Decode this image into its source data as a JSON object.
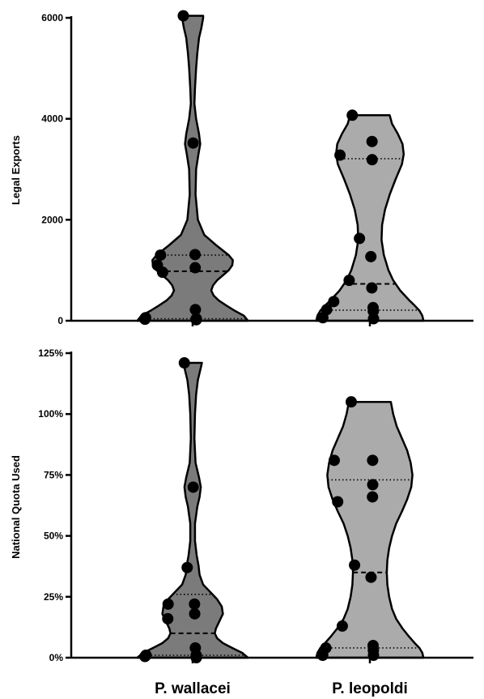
{
  "colors": {
    "axis": "#000000",
    "point": "#000000",
    "series_fills": [
      "#7b7b7b",
      "#ababab"
    ]
  },
  "chart_data": [
    {
      "type": "violin",
      "title": "",
      "xlabel": "",
      "ylabel": "Legal Exports",
      "categories": [
        "P. wallacei",
        "P. leopoldi"
      ],
      "ylim": [
        0,
        6000
      ],
      "yticks": [
        0,
        2000,
        4000,
        6000
      ],
      "ytick_labels": [
        "0",
        "2000",
        "4000",
        "6000"
      ],
      "grid": false,
      "legend": "none",
      "series": [
        {
          "points": [
            6040,
            3520,
            1300,
            1310,
            1100,
            1050,
            960,
            220,
            30,
            40,
            50,
            20,
            60,
            30
          ],
          "quartiles": {
            "q1": 40,
            "median": 980,
            "q3": 1300
          },
          "violin": {
            "ys": [
              0,
              100,
              200,
              300,
              400,
              500,
              600,
              700,
              800,
              900,
              1000,
              1100,
              1200,
              1300,
              1500,
              1700,
              2000,
              2500,
              3000,
              3300,
              3500,
              3700,
              4000,
              4300,
              4600,
              5000,
              5300,
              5600,
              5800,
              6000,
              6040
            ],
            "widths": [
              0.95,
              0.88,
              0.72,
              0.58,
              0.45,
              0.36,
              0.32,
              0.35,
              0.42,
              0.52,
              0.62,
              0.68,
              0.69,
              0.62,
              0.4,
              0.2,
              0.09,
              0.05,
              0.06,
              0.1,
              0.13,
              0.11,
              0.06,
              0.03,
              0.04,
              0.06,
              0.08,
              0.11,
              0.15,
              0.18,
              0.18
            ]
          }
        },
        {
          "points": [
            4070,
            3550,
            3280,
            3190,
            1630,
            1270,
            800,
            650,
            380,
            260,
            220,
            190,
            60,
            40
          ],
          "quartiles": {
            "q1": 210,
            "median": 730,
            "q3": 3210
          },
          "violin": {
            "ys": [
              0,
              100,
              200,
              300,
              400,
              600,
              800,
              1000,
              1300,
              1600,
              1900,
              2200,
              2500,
              2800,
              3100,
              3300,
              3500,
              3700,
              3900,
              4070
            ],
            "widths": [
              0.92,
              0.9,
              0.85,
              0.77,
              0.68,
              0.52,
              0.4,
              0.32,
              0.24,
              0.2,
              0.21,
              0.26,
              0.34,
              0.44,
              0.55,
              0.58,
              0.56,
              0.48,
              0.38,
              0.34
            ]
          }
        }
      ]
    },
    {
      "type": "violin",
      "title": "",
      "xlabel": "",
      "ylabel": "National Quota Used",
      "categories": [
        "P. wallacei",
        "P. leopoldi"
      ],
      "ylim": [
        0,
        125
      ],
      "yticks": [
        0,
        25,
        50,
        75,
        100,
        125
      ],
      "ytick_labels": [
        "0%",
        "25%",
        "50%",
        "75%",
        "100%",
        "125%"
      ],
      "grid": false,
      "legend": "none",
      "series": [
        {
          "points": [
            121,
            70,
            37,
            22,
            22,
            18,
            16,
            4,
            1,
            1,
            1,
            0,
            0.5,
            0.2
          ],
          "quartiles": {
            "q1": 1,
            "median": 10,
            "q3": 26
          },
          "violin": {
            "ys": [
              0,
              2,
              4,
              6,
              8,
              10,
              12,
              15,
              18,
              21,
              24,
              27,
              30,
              34,
              38,
              42,
              48,
              55,
              62,
              66,
              70,
              74,
              80,
              90,
              100,
              108,
              114,
              118,
              121
            ],
            "widths": [
              0.95,
              0.85,
              0.68,
              0.52,
              0.42,
              0.38,
              0.4,
              0.46,
              0.52,
              0.5,
              0.42,
              0.3,
              0.18,
              0.12,
              0.1,
              0.07,
              0.04,
              0.04,
              0.08,
              0.12,
              0.14,
              0.11,
              0.05,
              0.03,
              0.04,
              0.06,
              0.09,
              0.13,
              0.16
            ]
          }
        },
        {
          "points": [
            105,
            81,
            81,
            71,
            64,
            66,
            38,
            33,
            13,
            5,
            4,
            3,
            1,
            1
          ],
          "quartiles": {
            "q1": 4,
            "median": 35,
            "q3": 73
          },
          "violin": {
            "ys": [
              0,
              2,
              4,
              6,
              9,
              12,
              16,
              20,
              25,
              30,
              35,
              40,
              45,
              50,
              55,
              60,
              65,
              70,
              75,
              80,
              85,
              90,
              95,
              100,
              105
            ],
            "widths": [
              0.92,
              0.9,
              0.85,
              0.77,
              0.66,
              0.56,
              0.45,
              0.38,
              0.33,
              0.3,
              0.29,
              0.3,
              0.33,
              0.38,
              0.45,
              0.55,
              0.64,
              0.71,
              0.73,
              0.7,
              0.64,
              0.55,
              0.46,
              0.4,
              0.36
            ]
          }
        }
      ]
    }
  ]
}
